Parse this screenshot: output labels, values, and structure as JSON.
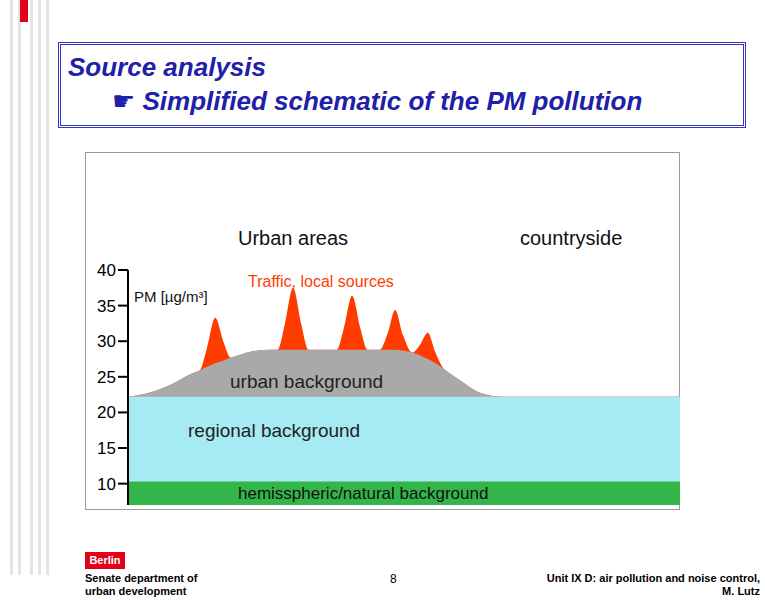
{
  "slide": {
    "title": "Source analysis",
    "subtitle": "☛ Simplified schematic of the PM pollution",
    "footer": {
      "logo": "Berlin",
      "department": "Senate department of urban development",
      "page": "8",
      "unit": "Unit IX D: air pollution and noise control,",
      "author": "M. Lutz"
    }
  },
  "chart_data": {
    "type": "area",
    "ylabel": "PM [µg/m³]",
    "annotations": [
      "Urban areas",
      "countryside"
    ],
    "xlim": [
      0,
      100
    ],
    "ylim": [
      7,
      40
    ],
    "yticks": [
      10,
      15,
      20,
      25,
      30,
      35,
      40
    ],
    "tick_labels": "y",
    "grid": false,
    "x": [
      0,
      4,
      8,
      12,
      13,
      14.3,
      15.8,
      17.3,
      18.6,
      22,
      26,
      27.1,
      28.4,
      29.9,
      31.4,
      32.7,
      36,
      37.8,
      39.1,
      40.6,
      42.1,
      43.4,
      45.6,
      47,
      48.4,
      49.8,
      51.5,
      52.9,
      54.3,
      55.7,
      57.1,
      60,
      64,
      68,
      80,
      100
    ],
    "series": [
      {
        "name": "Traffic, local sources",
        "color": "#ff3c00",
        "values": [
          22.2,
          22.8,
          24.0,
          25.6,
          25.9,
          29.0,
          33.3,
          29.9,
          27.7,
          28.5,
          28.8,
          28.8,
          32.3,
          37.5,
          32.3,
          28.8,
          28.8,
          28.8,
          31.8,
          36.4,
          31.8,
          28.8,
          28.8,
          31.0,
          34.4,
          30.9,
          28.4,
          29.5,
          31.2,
          28.4,
          26.2,
          24.6,
          22.7,
          22.2,
          22.2,
          22.2
        ]
      },
      {
        "name": "urban background",
        "color": "#a9a9a9",
        "values": [
          22.2,
          22.8,
          24.0,
          25.6,
          25.9,
          26.4,
          26.9,
          27.3,
          27.7,
          28.5,
          28.8,
          28.8,
          28.8,
          28.8,
          28.8,
          28.8,
          28.8,
          28.8,
          28.8,
          28.8,
          28.8,
          28.8,
          28.8,
          28.8,
          28.8,
          28.7,
          28.4,
          28.0,
          27.5,
          26.9,
          26.2,
          24.6,
          22.7,
          22.2,
          22.2,
          22.2
        ]
      },
      {
        "name": "regional background",
        "color": "#a6eaf4",
        "values": [
          22.2,
          22.2,
          22.2,
          22.2,
          22.2,
          22.2,
          22.2,
          22.2,
          22.2,
          22.2,
          22.2,
          22.2,
          22.2,
          22.2,
          22.2,
          22.2,
          22.2,
          22.2,
          22.2,
          22.2,
          22.2,
          22.2,
          22.2,
          22.2,
          22.2,
          22.2,
          22.2,
          22.2,
          22.2,
          22.2,
          22.2,
          22.2,
          22.2,
          22.2,
          22.2,
          22.2
        ]
      },
      {
        "name": "hemisspheric/natural background",
        "color": "#33b54a",
        "values": [
          10.3,
          10.3,
          10.3,
          10.3,
          10.3,
          10.3,
          10.3,
          10.3,
          10.3,
          10.3,
          10.3,
          10.3,
          10.3,
          10.3,
          10.3,
          10.3,
          10.3,
          10.3,
          10.3,
          10.3,
          10.3,
          10.3,
          10.3,
          10.3,
          10.3,
          10.3,
          10.3,
          10.3,
          10.3,
          10.3,
          10.3,
          10.3,
          10.3,
          10.3,
          10.3,
          10.3
        ]
      }
    ]
  }
}
